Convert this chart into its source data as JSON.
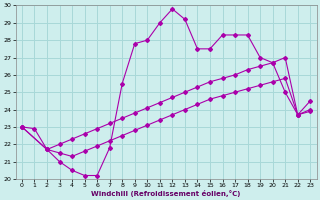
{
  "xlabel": "Windchill (Refroidissement éolien,°C)",
  "background_color": "#ceeeed",
  "grid_color": "#a8d8d8",
  "line_color": "#aa00aa",
  "xlim": [
    -0.5,
    23.5
  ],
  "ylim": [
    20,
    30
  ],
  "xticks": [
    0,
    1,
    2,
    3,
    4,
    5,
    6,
    7,
    8,
    9,
    10,
    11,
    12,
    13,
    14,
    15,
    16,
    17,
    18,
    19,
    20,
    21,
    22,
    23
  ],
  "yticks": [
    20,
    21,
    22,
    23,
    24,
    25,
    26,
    27,
    28,
    29,
    30
  ],
  "line1_x": [
    0,
    1,
    2,
    3,
    4,
    5,
    6,
    7,
    8,
    9,
    10,
    11,
    12,
    13,
    14,
    15,
    16,
    17,
    18,
    19,
    20,
    21,
    22,
    23
  ],
  "line1_y": [
    23.0,
    22.9,
    21.7,
    21.0,
    20.5,
    20.2,
    20.2,
    21.8,
    25.5,
    27.8,
    28.0,
    29.0,
    29.8,
    29.2,
    27.5,
    27.5,
    28.3,
    28.3,
    28.3,
    27.0,
    26.7,
    25.0,
    23.7,
    24.5
  ],
  "line2_x": [
    0,
    2,
    3,
    4,
    5,
    6,
    7,
    8,
    9,
    10,
    11,
    12,
    13,
    14,
    15,
    16,
    17,
    18,
    19,
    20,
    21,
    22,
    23
  ],
  "line2_y": [
    23.0,
    21.7,
    22.0,
    22.3,
    22.6,
    22.9,
    23.2,
    23.5,
    23.8,
    24.1,
    24.4,
    24.7,
    25.0,
    25.3,
    25.6,
    25.8,
    26.0,
    26.3,
    26.5,
    26.7,
    27.0,
    23.7,
    24.0
  ],
  "line3_x": [
    0,
    2,
    3,
    4,
    5,
    6,
    7,
    8,
    9,
    10,
    11,
    12,
    13,
    14,
    15,
    16,
    17,
    18,
    19,
    20,
    21,
    22,
    23
  ],
  "line3_y": [
    23.0,
    21.7,
    21.5,
    21.3,
    21.6,
    21.9,
    22.2,
    22.5,
    22.8,
    23.1,
    23.4,
    23.7,
    24.0,
    24.3,
    24.6,
    24.8,
    25.0,
    25.2,
    25.4,
    25.6,
    25.8,
    23.7,
    23.9
  ]
}
